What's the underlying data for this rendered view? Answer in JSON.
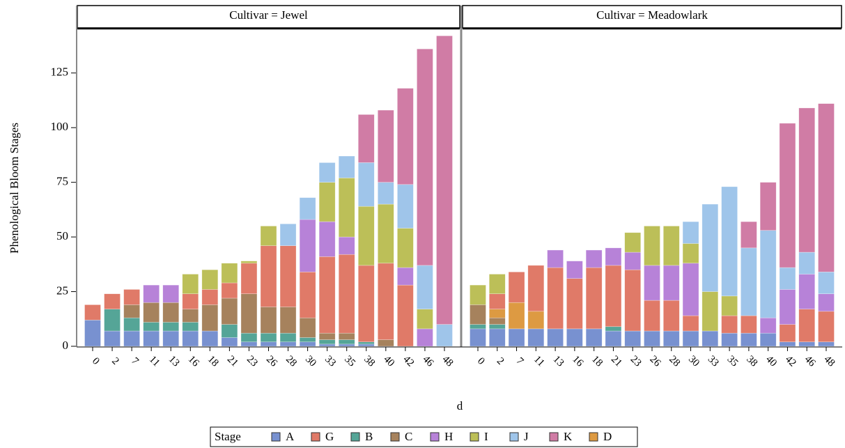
{
  "chart_data": {
    "type": "bar",
    "stacked": true,
    "panels": [
      "Cultivar = Jewel",
      "Cultivar = Meadowlark"
    ],
    "ylabel": "Phenological Bloom Stages",
    "xlabel": "d",
    "legend_title": "Stage",
    "categories": [
      "0",
      "2",
      "7",
      "11",
      "13",
      "16",
      "18",
      "21",
      "23",
      "26",
      "28",
      "30",
      "33",
      "35",
      "38",
      "40",
      "42",
      "46",
      "48"
    ],
    "ylim": [
      0,
      145
    ],
    "yticks": [
      0,
      25,
      50,
      75,
      100,
      125
    ],
    "series": [
      {
        "name": "A",
        "color": "#7891d0",
        "values": [
          [
            12,
            7,
            7,
            7,
            7,
            7,
            7,
            4,
            2,
            2,
            2,
            2,
            1,
            1,
            1,
            null,
            null,
            null,
            null
          ],
          [
            8,
            8,
            8,
            8,
            8,
            8,
            8,
            7,
            7,
            7,
            7,
            7,
            7,
            6,
            6,
            6,
            2,
            2,
            2
          ]
        ]
      },
      {
        "name": "G",
        "color": "#e07a68",
        "values": [
          [
            7,
            7,
            7,
            null,
            null,
            7,
            7,
            7,
            14,
            28,
            28,
            21,
            35,
            36,
            35,
            35,
            28,
            null,
            null
          ],
          [
            null,
            7,
            14,
            21,
            28,
            23,
            28,
            28,
            28,
            14,
            14,
            7,
            null,
            8,
            8,
            null,
            8,
            15,
            14
          ]
        ]
      },
      {
        "name": "B",
        "color": "#55a597",
        "values": [
          [
            null,
            10,
            6,
            4,
            4,
            4,
            null,
            6,
            4,
            4,
            4,
            2,
            2,
            2,
            1,
            null,
            null,
            null,
            null
          ],
          [
            2,
            2,
            null,
            null,
            null,
            null,
            null,
            2,
            null,
            null,
            null,
            null,
            null,
            null,
            null,
            null,
            null,
            null,
            null
          ]
        ]
      },
      {
        "name": "C",
        "color": "#a6825d",
        "values": [
          [
            null,
            null,
            6,
            9,
            9,
            6,
            12,
            12,
            18,
            12,
            12,
            9,
            3,
            3,
            null,
            3,
            null,
            null,
            null
          ],
          [
            9,
            3,
            null,
            null,
            null,
            null,
            null,
            null,
            null,
            null,
            null,
            null,
            null,
            null,
            null,
            null,
            null,
            null,
            null
          ]
        ]
      },
      {
        "name": "H",
        "color": "#b782d8",
        "values": [
          [
            null,
            null,
            null,
            8,
            8,
            null,
            null,
            null,
            null,
            null,
            null,
            24,
            16,
            8,
            null,
            null,
            8,
            8,
            null
          ],
          [
            null,
            null,
            null,
            null,
            8,
            8,
            8,
            8,
            8,
            16,
            16,
            24,
            null,
            null,
            null,
            7,
            16,
            16,
            8
          ]
        ]
      },
      {
        "name": "I",
        "color": "#bcbf58",
        "values": [
          [
            null,
            null,
            null,
            null,
            null,
            9,
            9,
            9,
            1,
            9,
            null,
            null,
            18,
            27,
            27,
            27,
            18,
            9,
            null
          ],
          [
            9,
            9,
            null,
            null,
            null,
            null,
            null,
            null,
            9,
            18,
            18,
            9,
            18,
            9,
            null,
            null,
            null,
            null,
            null
          ]
        ]
      },
      {
        "name": "J",
        "color": "#9fc5ea",
        "values": [
          [
            null,
            null,
            null,
            null,
            null,
            null,
            null,
            null,
            null,
            null,
            10,
            10,
            9,
            10,
            20,
            10,
            20,
            20,
            10
          ],
          [
            null,
            null,
            null,
            null,
            null,
            null,
            null,
            null,
            null,
            null,
            null,
            10,
            40,
            50,
            31,
            40,
            10,
            10,
            10
          ]
        ]
      },
      {
        "name": "K",
        "color": "#d07ca5",
        "values": [
          [
            null,
            null,
            null,
            null,
            null,
            null,
            null,
            null,
            null,
            null,
            null,
            null,
            null,
            null,
            22,
            33,
            44,
            99,
            132
          ],
          [
            null,
            null,
            null,
            null,
            null,
            null,
            null,
            null,
            null,
            null,
            null,
            null,
            null,
            null,
            12,
            22,
            66,
            66,
            77
          ]
        ]
      },
      {
        "name": "D",
        "color": "#dd9a42",
        "values": [
          [
            null,
            null,
            null,
            null,
            null,
            null,
            null,
            null,
            null,
            null,
            null,
            null,
            null,
            null,
            null,
            null,
            null,
            null,
            null
          ],
          [
            null,
            4,
            12,
            8,
            null,
            null,
            null,
            null,
            null,
            null,
            null,
            null,
            null,
            null,
            null,
            null,
            null,
            null,
            null
          ]
        ]
      }
    ]
  }
}
